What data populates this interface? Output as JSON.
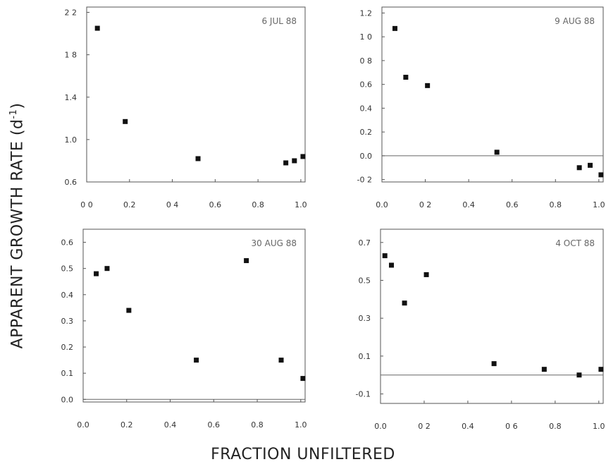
{
  "figure": {
    "ylabel_main": "APPARENT GROWTH RATE (d",
    "ylabel_sup": "-1",
    "ylabel_close": ")",
    "xlabel": "FRACTION UNFILTERED"
  },
  "chart_data": [
    {
      "type": "scatter",
      "title": "6 JUL 88",
      "xlim": [
        0.0,
        1.02
      ],
      "ylim": [
        0.6,
        2.25
      ],
      "x_ticks": [
        0.0,
        0.2,
        0.4,
        0.6,
        0.8,
        1.0
      ],
      "x_tick_labels": [
        "0 0",
        "0.2",
        "0 4",
        "0.6",
        "0.8",
        "1.0"
      ],
      "y_ticks": [
        0.6,
        1.0,
        1.4,
        1.8,
        2.2
      ],
      "y_tick_labels": [
        "0.6",
        "1.0",
        "1.4",
        "1 8",
        "2 2"
      ],
      "zero_line": false,
      "points": [
        {
          "x": 0.05,
          "y": 2.05
        },
        {
          "x": 0.18,
          "y": 1.17
        },
        {
          "x": 0.52,
          "y": 0.82
        },
        {
          "x": 0.93,
          "y": 0.78
        },
        {
          "x": 0.97,
          "y": 0.8
        },
        {
          "x": 1.01,
          "y": 0.84
        }
      ]
    },
    {
      "type": "scatter",
      "title": "9 AUG 88",
      "xlim": [
        0.0,
        1.02
      ],
      "ylim": [
        -0.22,
        1.25
      ],
      "x_ticks": [
        0.0,
        0.2,
        0.4,
        0.6,
        0.8,
        1.0
      ],
      "x_tick_labels": [
        "0.0",
        "0 2",
        "0.4",
        "0.6",
        "0.8",
        "1.0"
      ],
      "y_ticks": [
        -0.2,
        0.0,
        0.2,
        0.4,
        0.6,
        0.8,
        1.0,
        1.2
      ],
      "y_tick_labels": [
        "-0 2",
        "0.0",
        "0.2",
        "0.4",
        "0.6",
        "0 8",
        "1 0",
        "1.2"
      ],
      "zero_line": true,
      "points": [
        {
          "x": 0.06,
          "y": 1.07
        },
        {
          "x": 0.11,
          "y": 0.66
        },
        {
          "x": 0.21,
          "y": 0.59
        },
        {
          "x": 0.53,
          "y": 0.03
        },
        {
          "x": 0.91,
          "y": -0.1
        },
        {
          "x": 0.96,
          "y": -0.08
        },
        {
          "x": 1.01,
          "y": -0.16
        }
      ]
    },
    {
      "type": "scatter",
      "title": "30 AUG 88",
      "xlim": [
        0.0,
        1.02
      ],
      "ylim": [
        -0.01,
        0.65
      ],
      "x_ticks": [
        0.0,
        0.2,
        0.4,
        0.6,
        0.8,
        1.0
      ],
      "x_tick_labels": [
        "0.0",
        "0.2",
        "0.4",
        "0.6",
        "0.8",
        "1.0"
      ],
      "y_ticks": [
        0.0,
        0.1,
        0.2,
        0.3,
        0.4,
        0.5,
        0.6
      ],
      "y_tick_labels": [
        "0.0",
        "0.1",
        "0.2",
        "0.3",
        "0.4",
        "0.5",
        "0.6"
      ],
      "zero_line": true,
      "points": [
        {
          "x": 0.06,
          "y": 0.48
        },
        {
          "x": 0.11,
          "y": 0.5
        },
        {
          "x": 0.21,
          "y": 0.34
        },
        {
          "x": 0.52,
          "y": 0.15
        },
        {
          "x": 0.75,
          "y": 0.53
        },
        {
          "x": 0.91,
          "y": 0.15
        },
        {
          "x": 1.01,
          "y": 0.08
        }
      ]
    },
    {
      "type": "scatter",
      "title": "4 OCT 88",
      "xlim": [
        0.0,
        1.02
      ],
      "ylim": [
        -0.15,
        0.77
      ],
      "x_ticks": [
        0.0,
        0.2,
        0.4,
        0.6,
        0.8,
        1.0
      ],
      "x_tick_labels": [
        "0.0",
        "0 2",
        "0.4",
        "0 6",
        "0.8",
        "1.0"
      ],
      "y_ticks": [
        -0.1,
        0.1,
        0.3,
        0.5,
        0.7
      ],
      "y_tick_labels": [
        "-0.1",
        "0.1",
        "0.3",
        "0.5",
        "0.7"
      ],
      "zero_line": true,
      "points": [
        {
          "x": 0.02,
          "y": 0.63
        },
        {
          "x": 0.05,
          "y": 0.58
        },
        {
          "x": 0.11,
          "y": 0.38
        },
        {
          "x": 0.21,
          "y": 0.53
        },
        {
          "x": 0.52,
          "y": 0.06
        },
        {
          "x": 0.75,
          "y": 0.03
        },
        {
          "x": 0.91,
          "y": 0.0
        },
        {
          "x": 1.01,
          "y": 0.03
        }
      ]
    }
  ]
}
